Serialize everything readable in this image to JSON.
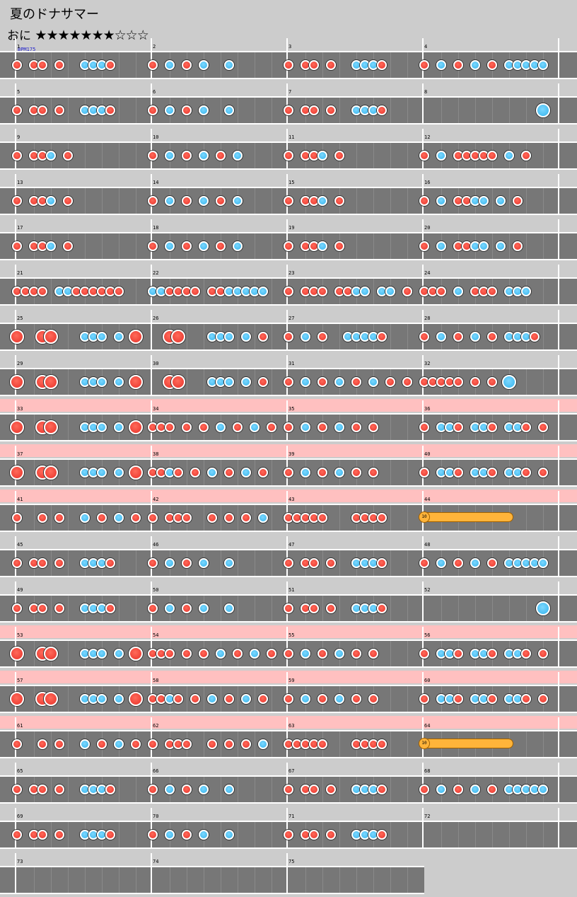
{
  "song": {
    "title": "夏のドナサマー",
    "difficulty": "おに",
    "stars": "★★★★★★★☆☆☆"
  },
  "bpm_label": "BPM175",
  "colors": {
    "don": "#e8322a",
    "ka": "#35b3ec",
    "roll": "#ffb43a",
    "gogo": "#ffc0c0"
  },
  "rows": [
    {
      "gogo": false,
      "measures": [
        "1",
        "2",
        "3",
        "4"
      ]
    },
    {
      "gogo": false,
      "measures": [
        "5",
        "6",
        "7",
        "8"
      ]
    },
    {
      "gogo": false,
      "measures": [
        "9",
        "10",
        "11",
        "12"
      ]
    },
    {
      "gogo": false,
      "measures": [
        "13",
        "14",
        "15",
        "16"
      ]
    },
    {
      "gogo": false,
      "measures": [
        "17",
        "18",
        "19",
        "20"
      ]
    },
    {
      "gogo": false,
      "measures": [
        "21",
        "22",
        "23",
        "24"
      ]
    },
    {
      "gogo": false,
      "measures": [
        "25",
        "26",
        "27",
        "28"
      ]
    },
    {
      "gogo": false,
      "measures": [
        "29",
        "30",
        "31",
        "32"
      ]
    },
    {
      "gogo": true,
      "measures": [
        "33",
        "34",
        "35",
        "36"
      ]
    },
    {
      "gogo": true,
      "measures": [
        "37",
        "38",
        "39",
        "40"
      ]
    },
    {
      "gogo": true,
      "measures": [
        "41",
        "42",
        "43",
        "44"
      ],
      "roll": {
        "label": "10",
        "measure": 3
      }
    },
    {
      "gogo": false,
      "measures": [
        "45",
        "46",
        "47",
        "48"
      ]
    },
    {
      "gogo": false,
      "measures": [
        "49",
        "50",
        "51",
        "52"
      ]
    },
    {
      "gogo": true,
      "measures": [
        "53",
        "54",
        "55",
        "56"
      ]
    },
    {
      "gogo": true,
      "measures": [
        "57",
        "58",
        "59",
        "60"
      ]
    },
    {
      "gogo": true,
      "measures": [
        "61",
        "62",
        "63",
        "64"
      ],
      "roll": {
        "label": "10",
        "measure": 3
      }
    },
    {
      "gogo": false,
      "measures": [
        "65",
        "66",
        "67",
        "68"
      ]
    },
    {
      "gogo": false,
      "measures": [
        "69",
        "70",
        "71",
        "72"
      ]
    },
    {
      "gogo": false,
      "measures": [
        "73",
        "74",
        "75"
      ]
    }
  ],
  "patterns": {
    "A": "d.dddd.d.kkkkd",
    "B": "d.k.d.k.k.d.ddd.d.kkkkd",
    "C": "d.k.d.k.d.kkkkk",
    "D": "d.ddk.d.d.k.d",
    "E": "d.k.ddd.d.k.d",
    "F": "D.DD.kk.kD.DD",
    "G": "d.k.dddd.k.d",
    "H": "k.dk.d.kkd.ddd"
  },
  "row_patterns": [
    "A|B|A|C",
    "A|B|A|K",
    "D|E|D|G",
    "D|E|D|H",
    "D|E|D|H",
    "F1|F2|F3|F4",
    "BIG|BIG2|R|R2",
    "BIG|BIG2|R3|R4",
    "BIG|R5|R6|R7",
    "BIG|R8|R6|R7",
    "R9|R10|R11|ROLL",
    "A|B|A|C",
    "A|B|A|K",
    "BIG|R5|R6|R7",
    "BIG|R8|R6|R7",
    "R9|R10|R11|ROLL",
    "A|B|A|C",
    "A|B|A|EMPTY",
    "EMPTY|EMPTY|EMPTY"
  ]
}
